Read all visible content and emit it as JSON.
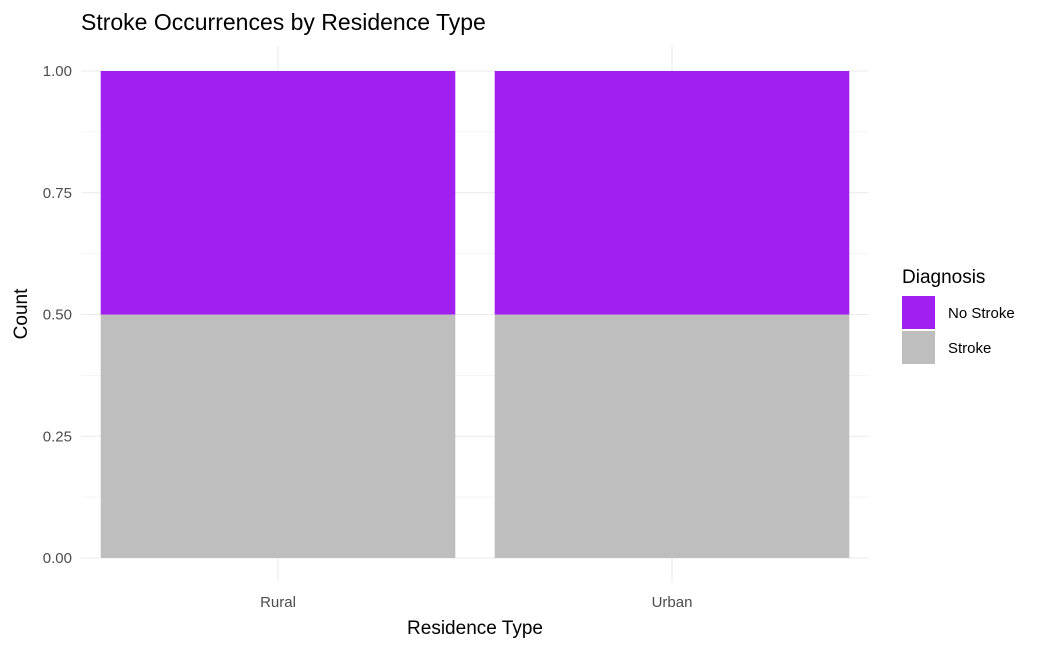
{
  "chart_data": {
    "type": "bar",
    "stacked": true,
    "title": "Stroke Occurrences by Residence Type",
    "xlabel": "Residence Type",
    "ylabel": "Count",
    "categories": [
      "Rural",
      "Urban"
    ],
    "series": [
      {
        "name": "Stroke",
        "values": [
          0.5,
          0.5
        ],
        "color": "#bebebe"
      },
      {
        "name": "No Stroke",
        "values": [
          0.5,
          0.5
        ],
        "color": "#a020f0"
      }
    ],
    "ylim": [
      0,
      1
    ],
    "yticks": [
      0,
      0.25,
      0.5,
      0.75,
      1
    ],
    "ytick_labels": [
      "0.00",
      "0.25",
      "0.50",
      "0.75",
      "1.00"
    ],
    "legend": {
      "title": "Diagnosis",
      "position": "right",
      "entries": [
        {
          "label": "No Stroke",
          "color": "#a020f0"
        },
        {
          "label": "Stroke",
          "color": "#bebebe"
        }
      ]
    },
    "grid": true
  }
}
